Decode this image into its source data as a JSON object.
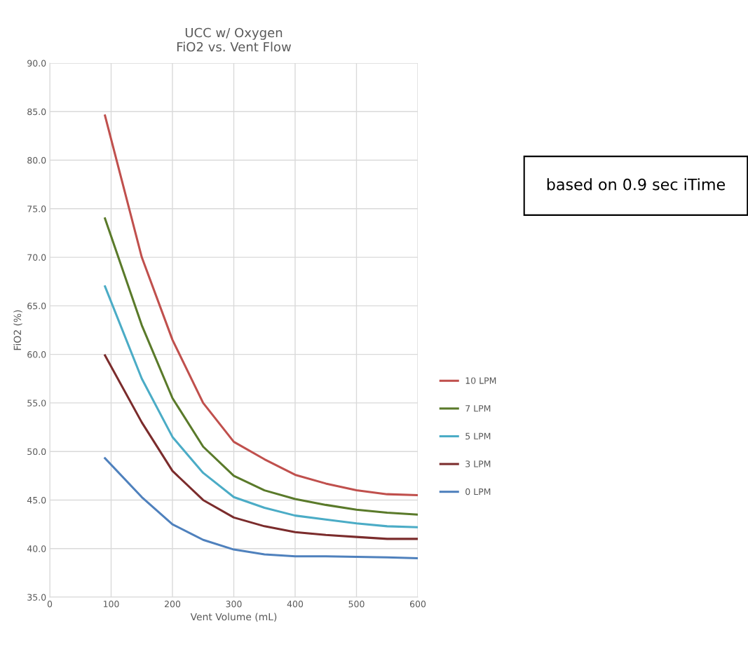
{
  "chart_data": {
    "type": "line",
    "title": "UCC w/ Oxygen\nFiO2 vs. Vent Flow",
    "xlabel": "Vent Volume (mL)",
    "ylabel": "FiO2 (%)",
    "x": [
      90,
      150,
      200,
      250,
      300,
      350,
      400,
      450,
      500,
      550,
      600
    ],
    "series": [
      {
        "name": "10 LPM",
        "color": "#c0504d",
        "values": [
          84.6,
          70.0,
          61.5,
          55.0,
          51.0,
          49.2,
          47.6,
          46.7,
          46.0,
          45.6,
          45.5
        ]
      },
      {
        "name": "7 LPM",
        "color": "#5a7a2a",
        "values": [
          74.0,
          63.0,
          55.5,
          50.5,
          47.5,
          46.0,
          45.1,
          44.5,
          44.0,
          43.7,
          43.5
        ]
      },
      {
        "name": "5 LPM",
        "color": "#4bacc6",
        "values": [
          67.0,
          57.5,
          51.5,
          47.8,
          45.3,
          44.2,
          43.4,
          43.0,
          42.6,
          42.3,
          42.2
        ]
      },
      {
        "name": "3 LPM",
        "color": "#7b2c2c",
        "values": [
          59.9,
          53.0,
          48.0,
          45.0,
          43.2,
          42.3,
          41.7,
          41.4,
          41.2,
          41.0,
          41.0
        ]
      },
      {
        "name": "0 LPM",
        "color": "#4f81bd",
        "values": [
          49.3,
          45.3,
          42.5,
          40.9,
          39.9,
          39.4,
          39.2,
          39.2,
          39.15,
          39.1,
          39.0
        ]
      }
    ],
    "xlim": [
      0,
      600
    ],
    "xticks": [
      0,
      100,
      200,
      300,
      400,
      500,
      600
    ],
    "ylim": [
      35,
      90
    ],
    "yticks": [
      {
        "value": 35,
        "label": "35.0"
      },
      {
        "value": 40,
        "label": "40.0"
      },
      {
        "value": 45,
        "label": "45.0"
      },
      {
        "value": 50,
        "label": "50.0"
      },
      {
        "value": 55,
        "label": "55.0"
      },
      {
        "value": 60,
        "label": "60.0"
      },
      {
        "value": 65,
        "label": "65.0"
      },
      {
        "value": 70,
        "label": "70.0"
      },
      {
        "value": 75,
        "label": "75.0"
      },
      {
        "value": 80,
        "label": "80.0"
      },
      {
        "value": 85,
        "label": "85.0"
      },
      {
        "value": 90,
        "label": "90.0"
      }
    ],
    "grid": true,
    "legend": "right",
    "marker": "none",
    "line_style": "solid",
    "annotations": [
      "based on 0.9 sec iTime"
    ]
  }
}
